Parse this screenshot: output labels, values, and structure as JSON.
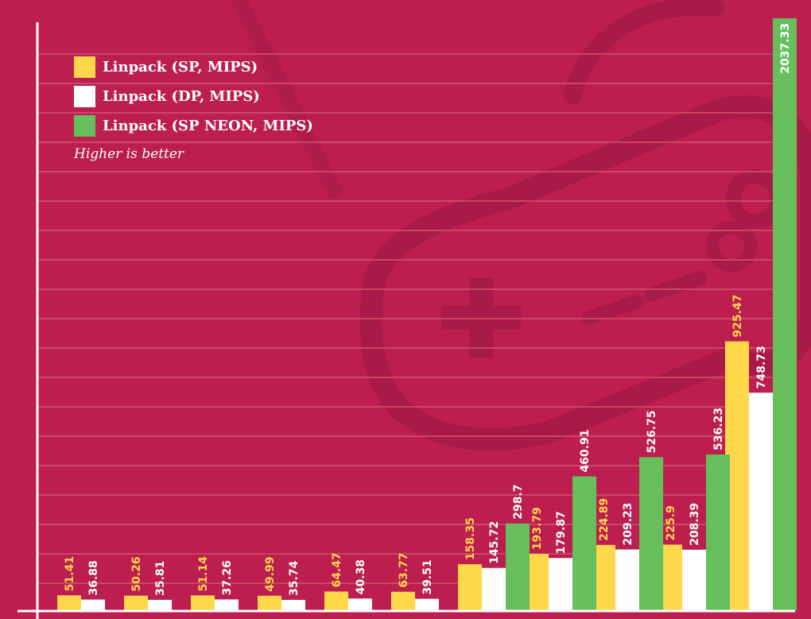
{
  "chart_data": {
    "type": "bar",
    "title": "",
    "xlabel": "",
    "ylabel": "",
    "ylim": [
      0,
      2050
    ],
    "grid": true,
    "legend_position": "top-left",
    "note": "Higher is better",
    "categories": [
      "",
      "",
      "",
      "",
      "",
      "",
      "",
      "",
      "",
      "",
      ""
    ],
    "series": [
      {
        "name": "Linpack (SP, MIPS)",
        "color": "#ffd84a",
        "values": [
          51.41,
          50.26,
          51.14,
          49.99,
          64.47,
          63.77,
          158.35,
          193.79,
          224.89,
          225.9,
          925.47
        ]
      },
      {
        "name": "Linpack (DP, MIPS)",
        "color": "#ffffff",
        "values": [
          36.88,
          35.81,
          37.26,
          35.74,
          40.38,
          39.51,
          145.72,
          179.87,
          209.23,
          208.39,
          748.73
        ]
      },
      {
        "name": "Linpack (SP NEON, MIPS)",
        "color": "#66bf5c",
        "values": [
          null,
          null,
          null,
          null,
          null,
          null,
          298.7,
          460.91,
          526.75,
          536.23,
          2037.33
        ]
      }
    ]
  },
  "colors": {
    "background": "#bb1e4f",
    "gridline": "#d4546f",
    "axis": "#ffffff",
    "decoration": "#a81a47"
  }
}
